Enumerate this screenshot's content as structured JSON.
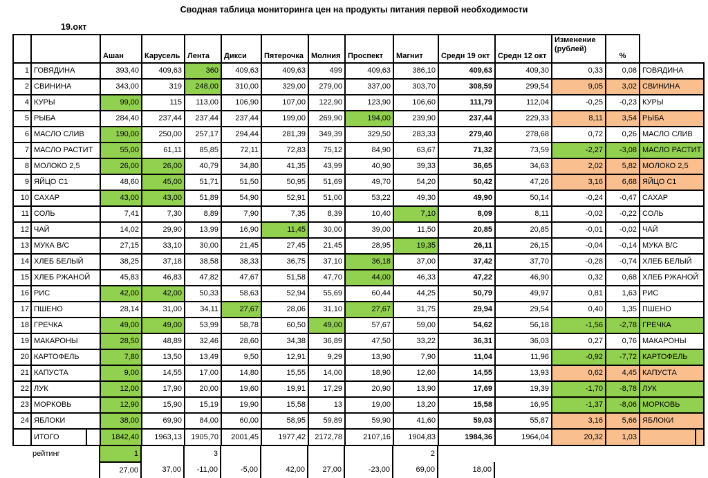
{
  "title": "Сводная таблица мониторинга цен на продукты питания первой необходимости",
  "date_label": "19.окт",
  "colors": {
    "min_price_green": "#92D050",
    "increase_orange": "#FABF8F"
  },
  "header": {
    "stores": [
      "Ашан",
      "Карусель",
      "Лента",
      "Дикси",
      "Пятерочка",
      "Молния",
      "Проспект",
      "Магнит"
    ],
    "avg19": "Средн 19 окт",
    "avg12": "Средн 12 окт",
    "change_line1": "Изменение",
    "change_line2": "(рублей)",
    "pct": "%"
  },
  "rows": [
    {
      "num": "1",
      "name": "ГОВЯДИНА",
      "prices": [
        "393,40",
        "409,63",
        "360",
        "409,63",
        "409,63",
        "499",
        "409,63",
        "386,10"
      ],
      "green": [
        2
      ],
      "avg19": "409,63",
      "avg12": "409,30",
      "change": "0,33",
      "pct": "0,08",
      "status": "none"
    },
    {
      "num": "2",
      "name": "СВИНИНА",
      "prices": [
        "343,00",
        "319",
        "248,00",
        "310,00",
        "329,00",
        "279,00",
        "337,00",
        "303,70"
      ],
      "green": [
        2
      ],
      "avg19": "308,59",
      "avg12": "299,54",
      "change": "9,05",
      "pct": "3,02",
      "status": "up"
    },
    {
      "num": "4",
      "name": "КУРЫ",
      "prices": [
        "99,00",
        "115",
        "113,00",
        "106,90",
        "107,00",
        "122,90",
        "123,90",
        "106,60"
      ],
      "green": [
        0
      ],
      "avg19": "111,79",
      "avg12": "112,04",
      "change": "-0,25",
      "pct": "-0,23",
      "status": "none"
    },
    {
      "num": "5",
      "name": "РЫБА",
      "prices": [
        "284,40",
        "237,44",
        "237,44",
        "237,44",
        "199,00",
        "269,90",
        "194,00",
        "239,90"
      ],
      "green": [
        6
      ],
      "avg19": "237,44",
      "avg12": "229,33",
      "change": "8,11",
      "pct": "3,54",
      "status": "up"
    },
    {
      "num": "6",
      "name": "МАСЛО СЛИВ",
      "prices": [
        "190,00",
        "250,00",
        "257,17",
        "294,44",
        "281,39",
        "349,39",
        "329,50",
        "283,33"
      ],
      "green": [
        0
      ],
      "avg19": "279,40",
      "avg12": "278,68",
      "change": "0,72",
      "pct": "0,26",
      "status": "none"
    },
    {
      "num": "7",
      "name": "МАСЛО РАСТИТ",
      "prices": [
        "55,00",
        "61,11",
        "85,85",
        "72,11",
        "72,83",
        "75,12",
        "84,90",
        "63,67"
      ],
      "green": [
        0
      ],
      "avg19": "71,32",
      "avg12": "73,59",
      "change": "-2,27",
      "pct": "-3,08",
      "status": "down"
    },
    {
      "num": "8",
      "name": "МОЛОКО 2,5",
      "prices": [
        "26,00",
        "26,00",
        "40,79",
        "34,80",
        "41,35",
        "43,99",
        "40,90",
        "39,33"
      ],
      "green": [
        0,
        1
      ],
      "avg19": "36,65",
      "avg12": "34,63",
      "change": "2,02",
      "pct": "5,82",
      "status": "up"
    },
    {
      "num": "9",
      "name": "ЯЙЦО С1",
      "prices": [
        "48,60",
        "45,00",
        "51,71",
        "51,50",
        "50,95",
        "51,69",
        "49,70",
        "54,20"
      ],
      "green": [
        1
      ],
      "avg19": "50,42",
      "avg12": "47,26",
      "change": "3,16",
      "pct": "6,68",
      "status": "up"
    },
    {
      "num": "10",
      "name": "САХАР",
      "prices": [
        "43,00",
        "43,00",
        "51,89",
        "54,90",
        "52,91",
        "51,00",
        "53,22",
        "49,30"
      ],
      "green": [
        0,
        1
      ],
      "avg19": "49,90",
      "avg12": "50,14",
      "change": "-0,24",
      "pct": "-0,47",
      "status": "none"
    },
    {
      "num": "11",
      "name": "СОЛЬ",
      "prices": [
        "7,41",
        "7,30",
        "8,89",
        "7,90",
        "7,35",
        "8,39",
        "10,40",
        "7,10"
      ],
      "green": [
        7
      ],
      "avg19": "8,09",
      "avg12": "8,11",
      "change": "-0,02",
      "pct": "-0,22",
      "status": "none"
    },
    {
      "num": "12",
      "name": "ЧАЙ",
      "prices": [
        "14,02",
        "29,90",
        "13,99",
        "16,90",
        "11,45",
        "30,00",
        "39,00",
        "11,50"
      ],
      "green": [
        4
      ],
      "avg19": "20,85",
      "avg12": "20,85",
      "change": "-0,01",
      "pct": "-0,02",
      "status": "none"
    },
    {
      "num": "13",
      "name": "МУКА В/С",
      "prices": [
        "27,15",
        "33,10",
        "30,00",
        "21,45",
        "27,45",
        "21,45",
        "28,95",
        "19,35"
      ],
      "green": [
        7
      ],
      "avg19": "26,11",
      "avg12": "26,15",
      "change": "-0,04",
      "pct": "-0,14",
      "status": "none"
    },
    {
      "num": "14",
      "name": "ХЛЕБ БЕЛЫЙ",
      "prices": [
        "38,25",
        "37,18",
        "38,58",
        "38,33",
        "36,75",
        "37,10",
        "36,18",
        "37,00"
      ],
      "green": [
        6
      ],
      "avg19": "37,42",
      "avg12": "37,70",
      "change": "-0,28",
      "pct": "-0,74",
      "status": "none"
    },
    {
      "num": "15",
      "name": "ХЛЕБ РЖАНОЙ",
      "prices": [
        "45,83",
        "46,83",
        "47,82",
        "47,67",
        "51,58",
        "47,70",
        "44,00",
        "46,33"
      ],
      "green": [
        6
      ],
      "avg19": "47,22",
      "avg12": "46,90",
      "change": "0,32",
      "pct": "0,68",
      "status": "none"
    },
    {
      "num": "16",
      "name": "РИС",
      "prices": [
        "42,00",
        "42,00",
        "50,33",
        "58,63",
        "52,94",
        "55,69",
        "60,44",
        "44,25"
      ],
      "green": [
        0,
        1
      ],
      "avg19": "50,79",
      "avg12": "49,97",
      "change": "0,81",
      "pct": "1,63",
      "status": "none"
    },
    {
      "num": "17",
      "name": "ПШЕНО",
      "prices": [
        "28,14",
        "31,00",
        "34,11",
        "27,67",
        "28,06",
        "31,10",
        "27,67",
        "31,75"
      ],
      "green": [
        3,
        6
      ],
      "avg19": "29,94",
      "avg12": "29,54",
      "change": "0,40",
      "pct": "1,35",
      "status": "none"
    },
    {
      "num": "18",
      "name": "ГРЕЧКА",
      "prices": [
        "49,00",
        "49,00",
        "53,99",
        "58,78",
        "60,50",
        "49,00",
        "57,67",
        "59,00"
      ],
      "green": [
        0,
        1,
        5
      ],
      "avg19": "54,62",
      "avg12": "56,18",
      "change": "-1,56",
      "pct": "-2,78",
      "status": "down"
    },
    {
      "num": "19",
      "name": "МАКАРОНЫ",
      "prices": [
        "28,50",
        "48,89",
        "32,46",
        "28,60",
        "34,38",
        "36,89",
        "47,50",
        "33,22"
      ],
      "green": [
        0
      ],
      "avg19": "36,31",
      "avg12": "36,03",
      "change": "0,27",
      "pct": "0,76",
      "status": "none"
    },
    {
      "num": "20",
      "name": "КАРТОФЕЛЬ",
      "prices": [
        "7,80",
        "13,50",
        "13,49",
        "9,50",
        "12,91",
        "9,29",
        "13,90",
        "7,90"
      ],
      "green": [
        0
      ],
      "avg19": "11,04",
      "avg12": "11,96",
      "change": "-0,92",
      "pct": "-7,72",
      "status": "down"
    },
    {
      "num": "21",
      "name": "КАПУСТА",
      "prices": [
        "9,00",
        "14,55",
        "17,00",
        "14,80",
        "15,55",
        "14,00",
        "18,90",
        "12,60"
      ],
      "green": [
        0
      ],
      "avg19": "14,55",
      "avg12": "13,93",
      "change": "0,62",
      "pct": "4,45",
      "status": "up"
    },
    {
      "num": "22",
      "name": "ЛУК",
      "prices": [
        "12,00",
        "17,90",
        "20,00",
        "19,60",
        "19,91",
        "17,29",
        "20,90",
        "13,90"
      ],
      "green": [
        0
      ],
      "avg19": "17,69",
      "avg12": "19,39",
      "change": "-1,70",
      "pct": "-8,78",
      "status": "down"
    },
    {
      "num": "23",
      "name": "МОРКОВЬ",
      "prices": [
        "12,90",
        "15,90",
        "15,19",
        "19,90",
        "15,58",
        "13",
        "19,00",
        "13,20"
      ],
      "green": [
        0
      ],
      "avg19": "15,58",
      "avg12": "16,95",
      "change": "-1,37",
      "pct": "-8,06",
      "status": "down"
    },
    {
      "num": "24",
      "name": "ЯБЛОКИ",
      "prices": [
        "38,00",
        "69,90",
        "84,00",
        "60,00",
        "58,95",
        "59,89",
        "59,90",
        "41,60"
      ],
      "green": [
        0
      ],
      "avg19": "59,03",
      "avg12": "55,87",
      "change": "3,16",
      "pct": "5,66",
      "status": "up"
    }
  ],
  "total": {
    "label": "ИТОГО",
    "prices": [
      "1842,40",
      "1963,13",
      "1905,70",
      "2001,45",
      "1977,42",
      "2172,78",
      "2107,16",
      "1904,83"
    ],
    "green": [
      0
    ],
    "avg19": "1984,36",
    "avg12": "1964,04",
    "change": "20,32",
    "pct": "1,03",
    "status": "up"
  },
  "rating": {
    "label": "рейтинг",
    "values": [
      "1",
      "",
      "3",
      "",
      "",
      "",
      "",
      "2"
    ],
    "green": [
      0
    ]
  },
  "deltas": {
    "stores": [
      "27,00",
      "37,00",
      "-11,00",
      "-5,00",
      "42,00",
      "27,00",
      "-23,00",
      "69,00"
    ],
    "avg19": "18,00"
  }
}
